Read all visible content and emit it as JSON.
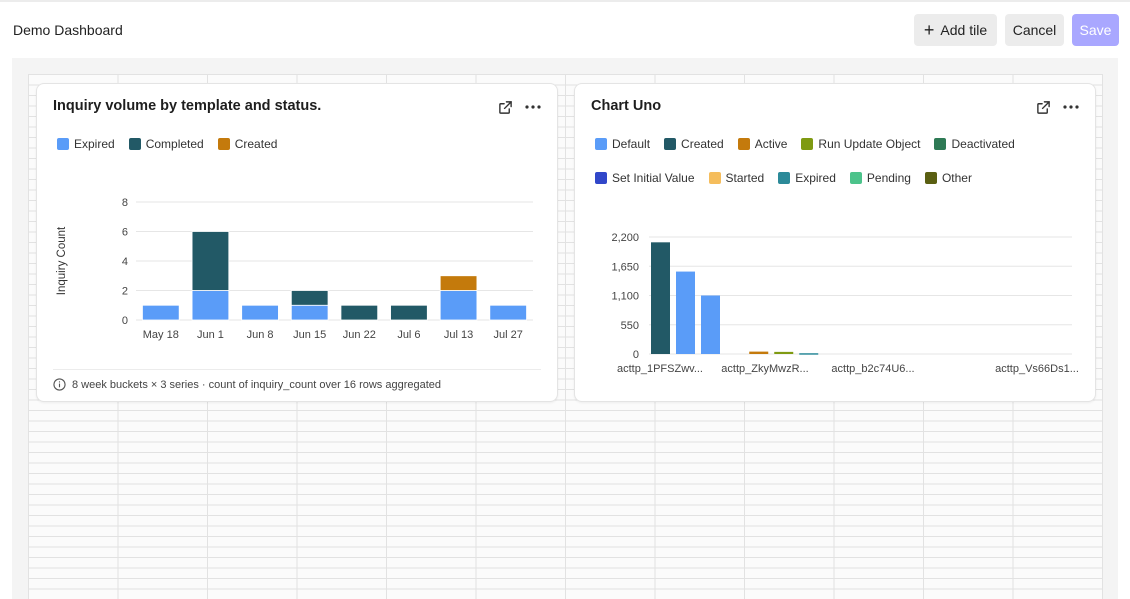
{
  "header": {
    "title": "Demo Dashboard",
    "add_tile_label": "Add tile",
    "cancel_label": "Cancel",
    "save_label": "Save"
  },
  "tiles": [
    {
      "title": "Inquiry volume by template and status.",
      "legend": [
        {
          "label": "Expired",
          "color": "#5a9cf8"
        },
        {
          "label": "Completed",
          "color": "#225966"
        },
        {
          "label": "Created",
          "color": "#c47a0c"
        }
      ],
      "footer": "8 week buckets × 3 series · count of inquiry_count over 16 rows aggregated"
    },
    {
      "title": "Chart Uno",
      "legend_rows": [
        [
          {
            "label": "Default",
            "color": "#5a9cf8"
          },
          {
            "label": "Created",
            "color": "#225966"
          },
          {
            "label": "Active",
            "color": "#c47a0c"
          },
          {
            "label": "Run Update Object",
            "color": "#7f9a12"
          },
          {
            "label": "Deactivated",
            "color": "#2e7a55"
          }
        ],
        [
          {
            "label": "Set Initial Value",
            "color": "#3147c9"
          },
          {
            "label": "Started",
            "color": "#f5bd5c"
          },
          {
            "label": "Expired",
            "color": "#2c8a99"
          },
          {
            "label": "Pending",
            "color": "#4cc38b"
          },
          {
            "label": "Other",
            "color": "#5a5f12"
          }
        ]
      ]
    }
  ],
  "chart_data": [
    {
      "type": "bar",
      "stacked": true,
      "title": "Inquiry volume by template and status.",
      "categories": [
        "May 18",
        "Jun 1",
        "Jun 8",
        "Jun 15",
        "Jun 22",
        "Jul 6",
        "Jul 13",
        "Jul 27"
      ],
      "series": [
        {
          "name": "Expired",
          "color": "#5a9cf8",
          "values": [
            1,
            2,
            1,
            1,
            0,
            0,
            2,
            1
          ]
        },
        {
          "name": "Completed",
          "color": "#225966",
          "values": [
            0,
            4,
            0,
            1,
            1,
            1,
            0,
            0
          ]
        },
        {
          "name": "Created",
          "color": "#c47a0c",
          "values": [
            0,
            0,
            0,
            0,
            0,
            0,
            1,
            0
          ]
        }
      ],
      "ylabel": "Inquiry Count",
      "ylim": [
        0,
        8
      ],
      "yticks": [
        0,
        2,
        4,
        6,
        8
      ],
      "grid": true
    },
    {
      "type": "bar",
      "title": "Chart Uno",
      "categories": [
        "actt​p_1PFSZwv...",
        "actt​p_ZkyMwzR...",
        "actt​p_b2c74U6...",
        "actt​p_Vs66Ds1..."
      ],
      "tick_labels": [
        "acttp_1PFSZwv...",
        "acttp_ZkyMwzR...",
        "acttp_b2c74U6...",
        "acttp_Vs66Ds1..."
      ],
      "series": [
        {
          "name": "Created",
          "color": "#225966",
          "values": [
            2100,
            0,
            0,
            0
          ]
        },
        {
          "name": "Default",
          "color": "#5a9cf8",
          "values": [
            1550,
            0,
            0,
            0
          ]
        },
        {
          "name": "Default",
          "color": "#5a9cf8",
          "values": [
            1100,
            0,
            0,
            0
          ]
        },
        {
          "name": "Active",
          "color": "#c47a0c",
          "values": [
            0,
            45,
            0,
            0
          ]
        },
        {
          "name": "Run Update Object",
          "color": "#7f9a12",
          "values": [
            0,
            40,
            0,
            0
          ]
        },
        {
          "name": "Expired",
          "color": "#2c8a99",
          "values": [
            0,
            15,
            0,
            0
          ]
        }
      ],
      "ylim": [
        0,
        2200
      ],
      "yticks": [
        "0",
        "550",
        "1,100",
        "1,650",
        "2,200"
      ],
      "grid": true
    }
  ]
}
